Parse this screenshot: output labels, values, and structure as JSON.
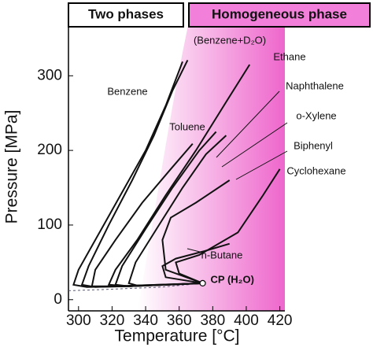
{
  "chart_data": {
    "type": "line",
    "header_left": "Two phases",
    "header_right": "Homogeneous phase",
    "x_label": "Temperature [°C]",
    "y_label": "Pressure [MPa]",
    "xlim": [
      294,
      423
    ],
    "ylim": [
      -15,
      372
    ],
    "xticks": [
      300,
      320,
      340,
      360,
      380,
      400,
      420
    ],
    "yticks": [
      0,
      100,
      200,
      300
    ],
    "color": "#111111",
    "series": [
      {
        "name": "Benzene",
        "x": [
          374,
          330,
          305,
          297,
          300,
          310,
          325,
          340,
          352,
          362
        ],
        "values": [
          22,
          18,
          17,
          20,
          40,
          80,
          140,
          200,
          260,
          319
        ]
      },
      {
        "name": "(Benzene+D₂O)",
        "x": [
          374,
          330,
          310,
          302,
          306,
          318,
          332,
          345,
          356,
          365
        ],
        "values": [
          22,
          18,
          17,
          20,
          45,
          100,
          160,
          220,
          280,
          321
        ]
      },
      {
        "name": "Toluene",
        "x": [
          374,
          320,
          308,
          310,
          322,
          338,
          355,
          368
        ],
        "values": [
          22,
          18,
          18,
          40,
          80,
          130,
          175,
          209
        ]
      },
      {
        "name": "Ethane",
        "x": [
          374,
          330,
          318,
          322,
          335,
          352,
          370,
          388,
          402
        ],
        "values": [
          22,
          18,
          20,
          40,
          80,
          140,
          200,
          265,
          315
        ]
      },
      {
        "name": "Naphthalene",
        "x": [
          374,
          330,
          322,
          326,
          340,
          356,
          372,
          382
        ],
        "values": [
          22,
          18,
          20,
          45,
          95,
          150,
          200,
          225
        ]
      },
      {
        "name": "o-Xylene",
        "x": [
          374,
          335,
          330,
          334,
          348,
          362,
          376,
          388
        ],
        "values": [
          22,
          19,
          22,
          50,
          100,
          150,
          195,
          220
        ]
      },
      {
        "name": "Biphenyl",
        "x": [
          374,
          352,
          350,
          355,
          370,
          390
        ],
        "values": [
          22,
          40,
          80,
          110,
          130,
          160
        ]
      },
      {
        "name": "Cyclohexane",
        "x": [
          374,
          360,
          358,
          372,
          395,
          410,
          420
        ],
        "values": [
          22,
          35,
          50,
          60,
          90,
          140,
          175
        ]
      },
      {
        "name": "n-Butane",
        "x": [
          374,
          352,
          350,
          358,
          375,
          390
        ],
        "values": [
          22,
          30,
          45,
          55,
          65,
          75
        ]
      }
    ],
    "vapor_curve": {
      "x": [
        294,
        320,
        350,
        374
      ],
      "values": [
        12,
        14,
        17,
        22
      ]
    },
    "cp": {
      "label": "CP (H₂O)",
      "x": 374,
      "y": 22
    }
  }
}
